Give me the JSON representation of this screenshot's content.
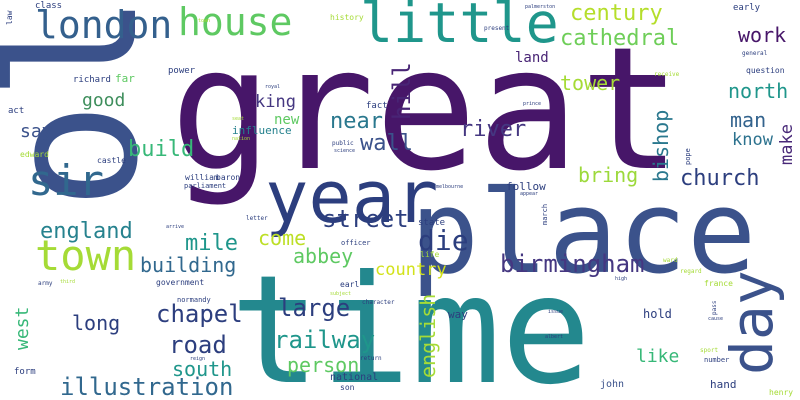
{
  "words": [
    {
      "text": "great",
      "color": "#471669"
    },
    {
      "text": "old",
      "color": "#3b528b"
    },
    {
      "text": "time",
      "color": "#23888e"
    },
    {
      "text": "place",
      "color": "#3b528b"
    },
    {
      "text": "year",
      "color": "#2c3e7e"
    },
    {
      "text": "london",
      "color": "#34608d"
    },
    {
      "text": "house",
      "color": "#5ec962"
    },
    {
      "text": "little",
      "color": "#1f968b"
    },
    {
      "text": "sir",
      "color": "#31688e"
    },
    {
      "text": "town",
      "color": "#a5db36"
    },
    {
      "text": "day",
      "color": "#3b528b"
    },
    {
      "text": "century",
      "color": "#b5de2b"
    },
    {
      "text": "cathedral",
      "color": "#6ece58"
    },
    {
      "text": "work",
      "color": "#471669"
    },
    {
      "text": "hill",
      "color": "#482475"
    },
    {
      "text": "tower",
      "color": "#a5db36"
    },
    {
      "text": "north",
      "color": "#1f968b"
    },
    {
      "text": "good",
      "color": "#3e8e5c"
    },
    {
      "text": "king",
      "color": "#453781"
    },
    {
      "text": "man",
      "color": "#33638d"
    },
    {
      "text": "bishop",
      "color": "#2a788e"
    },
    {
      "text": "near",
      "color": "#2a788e"
    },
    {
      "text": "river",
      "color": "#453781"
    },
    {
      "text": "know",
      "color": "#2c728e"
    },
    {
      "text": "make",
      "color": "#482878"
    },
    {
      "text": "build",
      "color": "#37b878"
    },
    {
      "text": "wall",
      "color": "#3b528b"
    },
    {
      "text": "church",
      "color": "#2c3e7e"
    },
    {
      "text": "bring",
      "color": "#9cd93b"
    },
    {
      "text": "say",
      "color": "#3b528b"
    },
    {
      "text": "new",
      "color": "#5ec962"
    },
    {
      "text": "street",
      "color": "#2c3e7e"
    },
    {
      "text": "england",
      "color": "#26828e"
    },
    {
      "text": "mile",
      "color": "#1f968b"
    },
    {
      "text": "come",
      "color": "#bddf26"
    },
    {
      "text": "die",
      "color": "#2c3e7e"
    },
    {
      "text": "abbey",
      "color": "#5ec962"
    },
    {
      "text": "building",
      "color": "#31688e"
    },
    {
      "text": "birmingham",
      "color": "#453781"
    },
    {
      "text": "country",
      "color": "#d2e21b"
    },
    {
      "text": "large",
      "color": "#2c3e7e"
    },
    {
      "text": "chapel",
      "color": "#2c3e7e"
    },
    {
      "text": "long",
      "color": "#2c3e7e"
    },
    {
      "text": "railway",
      "color": "#1f968b"
    },
    {
      "text": "road",
      "color": "#2c3e7e"
    },
    {
      "text": "west",
      "color": "#37b878"
    },
    {
      "text": "english",
      "color": "#a5db36"
    },
    {
      "text": "person",
      "color": "#5ec962"
    },
    {
      "text": "south",
      "color": "#1f968b"
    },
    {
      "text": "like",
      "color": "#37b878"
    },
    {
      "text": "illustration",
      "color": "#31688e"
    },
    {
      "text": "influence",
      "color": "#26828e"
    },
    {
      "text": "richard",
      "color": "#2c3e7e"
    },
    {
      "text": "far",
      "color": "#5ec962"
    },
    {
      "text": "land",
      "color": "#482475"
    },
    {
      "text": "follow",
      "color": "#2c3e7e"
    },
    {
      "text": "hold",
      "color": "#2c3e7e"
    },
    {
      "text": "france",
      "color": "#a5db36"
    },
    {
      "text": "hand",
      "color": "#2c3e7e"
    },
    {
      "text": "john",
      "color": "#3b528b"
    },
    {
      "text": "national",
      "color": "#2c3e7e"
    },
    {
      "text": "son",
      "color": "#2c3e7e"
    },
    {
      "text": "way",
      "color": "#2c3e7e"
    },
    {
      "text": "class",
      "color": "#2c3e7e"
    },
    {
      "text": "history",
      "color": "#a5db36"
    },
    {
      "text": "power",
      "color": "#2c3e7e"
    },
    {
      "text": "act",
      "color": "#2c3e7e"
    },
    {
      "text": "castle",
      "color": "#2c3e7e"
    },
    {
      "text": "edward",
      "color": "#a5db36"
    },
    {
      "text": "william",
      "color": "#2c3e7e"
    },
    {
      "text": "baron",
      "color": "#2c3e7e"
    },
    {
      "text": "parliament",
      "color": "#2c3e7e"
    },
    {
      "text": "fact",
      "color": "#2c3e7e"
    },
    {
      "text": "public",
      "color": "#2c3e7e"
    },
    {
      "text": "earl",
      "color": "#2c3e7e"
    },
    {
      "text": "early",
      "color": "#2c3e7e"
    },
    {
      "text": "general",
      "color": "#2c3e7e"
    },
    {
      "text": "question",
      "color": "#2c3e7e"
    },
    {
      "text": "pope",
      "color": "#2c3e7e"
    },
    {
      "text": "state",
      "color": "#2c3e7e"
    },
    {
      "text": "life",
      "color": "#a5db36"
    },
    {
      "text": "officer",
      "color": "#2c3e7e"
    },
    {
      "text": "march",
      "color": "#2c3e7e"
    },
    {
      "text": "letter",
      "color": "#2c3e7e"
    },
    {
      "text": "government",
      "color": "#2c3e7e"
    },
    {
      "text": "army",
      "color": "#2c3e7e"
    },
    {
      "text": "normandy",
      "color": "#2c3e7e"
    },
    {
      "text": "character",
      "color": "#2c3e7e"
    },
    {
      "text": "number",
      "color": "#2c3e7e"
    },
    {
      "text": "henry",
      "color": "#a5db36"
    },
    {
      "text": "form",
      "color": "#2c3e7e"
    },
    {
      "text": "return",
      "color": "#2c3e7e"
    },
    {
      "text": "law",
      "color": "#2c3e7e"
    },
    {
      "text": "present",
      "color": "#2c3e7e"
    },
    {
      "text": "palmerston",
      "color": "#2c3e7e"
    },
    {
      "text": "receive",
      "color": "#a5db36"
    },
    {
      "text": "regard",
      "color": "#a5db36"
    },
    {
      "text": "sport",
      "color": "#a5db36"
    },
    {
      "text": "pass",
      "color": "#2c3e7e"
    },
    {
      "text": "albert",
      "color": "#2c3e7e"
    },
    {
      "text": "prince",
      "color": "#2c3e7e"
    },
    {
      "text": "cause",
      "color": "#2c3e7e"
    },
    {
      "text": "high",
      "color": "#2c3e7e"
    },
    {
      "text": "melbourne",
      "color": "#2c3e7e"
    },
    {
      "text": "appear",
      "color": "#2c3e7e"
    },
    {
      "text": "subject",
      "color": "#a5db36"
    },
    {
      "text": "arrive",
      "color": "#2c3e7e"
    },
    {
      "text": "reign",
      "color": "#2c3e7e"
    },
    {
      "text": "royal",
      "color": "#2c3e7e"
    },
    {
      "text": "seat",
      "color": "#a5db36"
    },
    {
      "text": "town",
      "color": "#a5db36"
    },
    {
      "text": "ward",
      "color": "#a5db36"
    },
    {
      "text": "science",
      "color": "#2c3e7e"
    },
    {
      "text": "third",
      "color": "#a5db36"
    },
    {
      "text": "issue",
      "color": "#2c3e7e"
    },
    {
      "text": "nation",
      "color": "#a5db36"
    }
  ]
}
